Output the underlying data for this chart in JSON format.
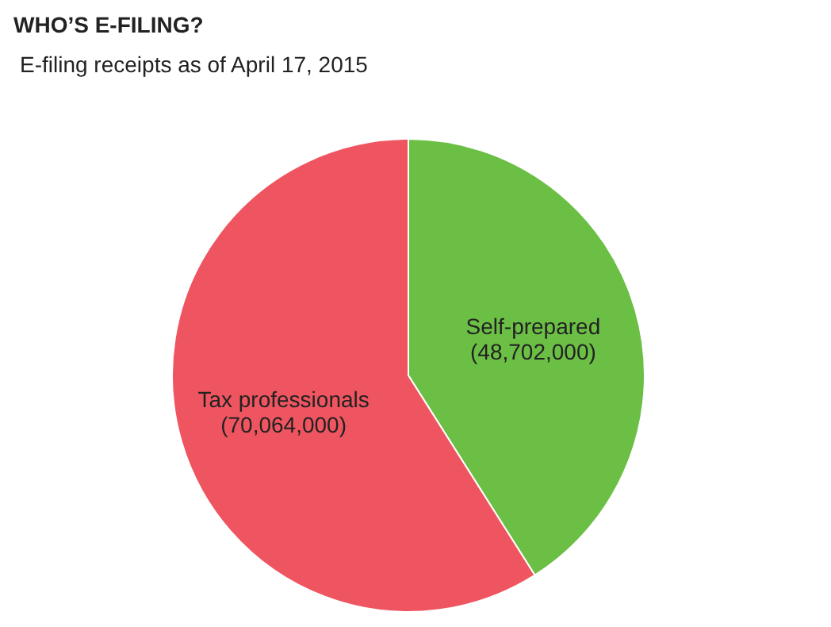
{
  "chart_data": {
    "type": "pie",
    "title": "WHO’S E-FILING?",
    "subtitle": "E-filing receipts as of April 17, 2015",
    "categories": [
      "Self-prepared",
      "Tax professionals"
    ],
    "values": [
      48702000,
      70064000
    ],
    "colors": [
      "#6cbf45",
      "#ef5560"
    ],
    "value_labels": [
      "(48,702,000)",
      "(70,064,000)"
    ]
  }
}
